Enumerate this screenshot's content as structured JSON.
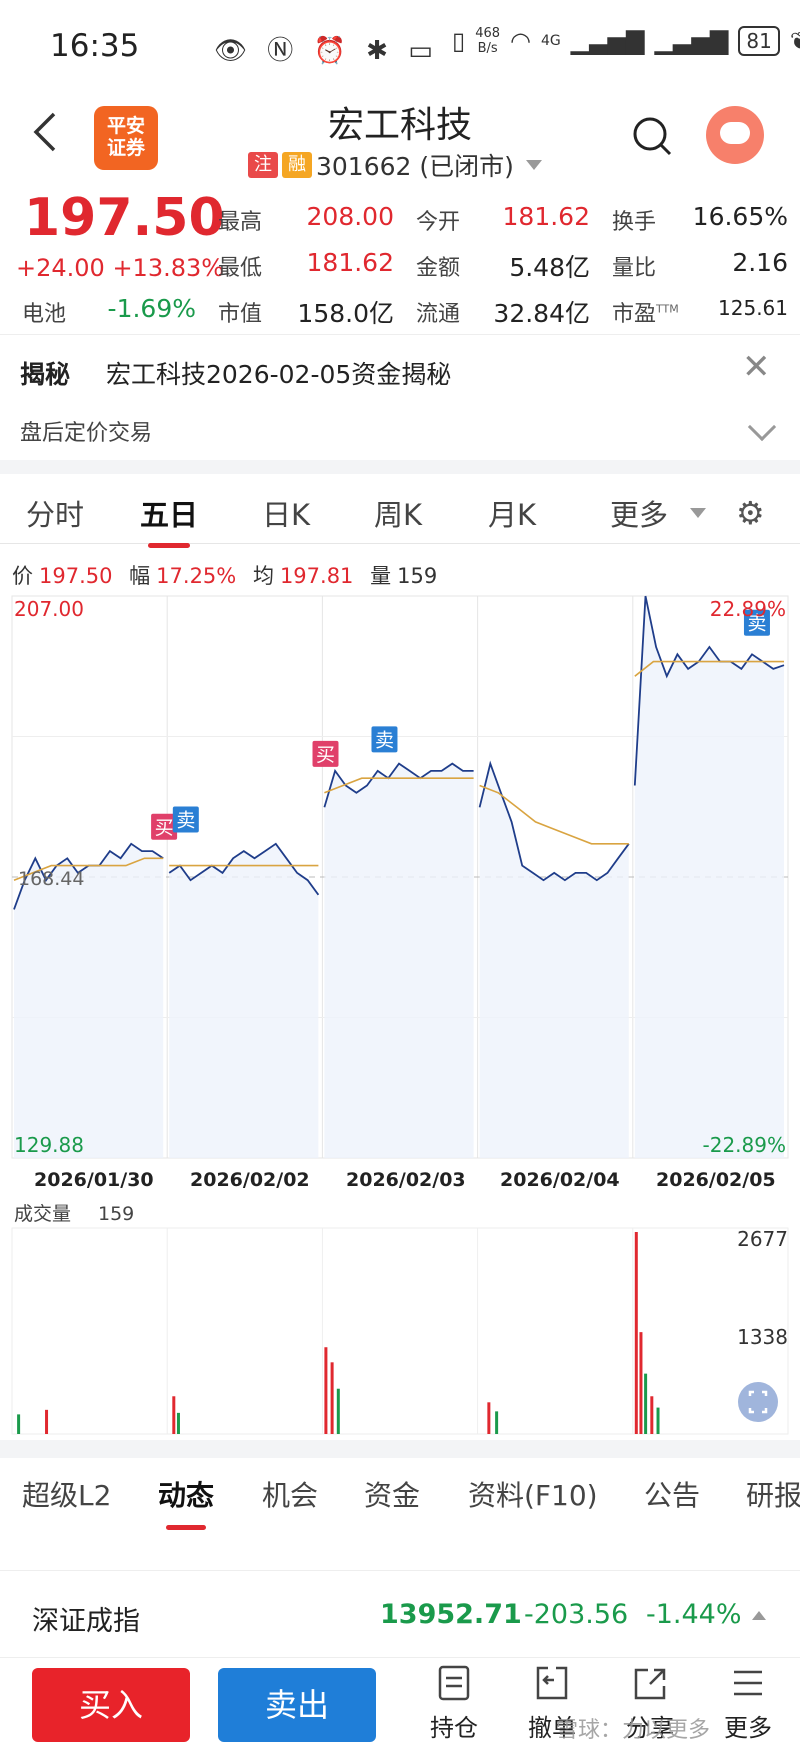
{
  "status_bar": {
    "time": "16:35",
    "left_icons": "👁 Ⓝ ⏰ ✱ ▭",
    "net_speed_top": "468",
    "net_speed_bottom": "B/s",
    "network": "4G",
    "battery": "81"
  },
  "header": {
    "broker_logo_line1": "平安",
    "broker_logo_line2": "证券",
    "stock_name": "宏工科技",
    "tag_zhu": "注",
    "tag_rong": "融",
    "code_status": "301662 (已闭市)"
  },
  "quote": {
    "price": "197.50",
    "change": "+24.00 +13.83%",
    "sector_label": "电池",
    "sector_change": "-1.69%",
    "rows": [
      {
        "l1": "最高",
        "v1": "208.00",
        "l2": "今开",
        "v2": "181.62",
        "l3": "换手",
        "v3": "16.65%"
      },
      {
        "l1": "最低",
        "v1": "181.62",
        "l2": "金额",
        "v2": "5.48亿",
        "l3": "量比",
        "v3": "2.16"
      },
      {
        "l1": "市值",
        "v1": "158.0亿",
        "l2": "流通",
        "v2": "32.84亿",
        "l3": "市盈",
        "v3": "125.61"
      }
    ],
    "ttm": "TTM"
  },
  "reveal": {
    "title": "揭秘",
    "text": "宏工科技2026-02-05资金揭秘",
    "close": "✕",
    "sub": "盘后定价交易"
  },
  "chart_tabs": [
    "分时",
    "五日",
    "日K",
    "周K",
    "月K",
    "更多"
  ],
  "chart_tabs_active": 1,
  "infoline": {
    "price_label": "价",
    "price": "197.50",
    "range_label": "幅",
    "range": "17.25%",
    "avg_label": "均",
    "avg": "197.81",
    "vol_label": "量",
    "vol": "159"
  },
  "chart_data": {
    "type": "line",
    "title": "",
    "dates": [
      "2026/01/30",
      "2026/02/02",
      "2026/02/03",
      "2026/02/04",
      "2026/02/05"
    ],
    "ylim": [
      129.88,
      207.0
    ],
    "y_top_label": "207.00",
    "y_bottom_label": "129.88",
    "pct_top_label": "22.89%",
    "pct_bottom_label": "-22.89%",
    "prev_close_label": "168.44",
    "prev_close": 168.44,
    "price_series": [
      {
        "day": 0,
        "values": [
          164,
          168,
          171,
          168,
          170,
          171,
          169,
          170,
          170,
          172,
          171,
          173,
          172,
          172,
          171
        ]
      },
      {
        "day": 1,
        "values": [
          169,
          170,
          168,
          169,
          170,
          169,
          171,
          172,
          171,
          172,
          173,
          171,
          169,
          168,
          166
        ]
      },
      {
        "day": 2,
        "values": [
          178,
          183,
          181,
          180,
          181,
          183,
          182,
          184,
          183,
          182,
          183,
          183,
          184,
          183,
          183
        ]
      },
      {
        "day": 3,
        "values": [
          178,
          184,
          180,
          176,
          170,
          169,
          168,
          169,
          168,
          169,
          169,
          168,
          169,
          171,
          173
        ]
      },
      {
        "day": 4,
        "values": [
          181,
          207,
          200,
          196,
          199,
          197,
          198,
          200,
          198,
          198,
          197,
          199,
          198,
          197,
          197.5
        ]
      }
    ],
    "avg_series": [
      {
        "day": 0,
        "values": [
          168,
          169,
          170,
          170,
          170,
          170,
          170,
          171,
          171
        ]
      },
      {
        "day": 1,
        "values": [
          170,
          170,
          170,
          170,
          170,
          170,
          170,
          170,
          170
        ]
      },
      {
        "day": 2,
        "values": [
          180,
          181,
          182,
          182,
          182,
          182,
          182,
          182,
          182
        ]
      },
      {
        "day": 3,
        "values": [
          181,
          180,
          178,
          176,
          175,
          174,
          173,
          173,
          173
        ]
      },
      {
        "day": 4,
        "values": [
          196,
          198,
          198,
          198,
          198,
          198,
          198,
          198,
          198
        ]
      }
    ],
    "trade_markers": [
      {
        "label": "买",
        "day": 0,
        "pos": 0.98,
        "price": 173,
        "color": "#e0406a"
      },
      {
        "label": "卖",
        "day": 1,
        "pos": 0.12,
        "price": 174,
        "color": "#2a7fd4"
      },
      {
        "label": "买",
        "day": 2,
        "pos": 0.02,
        "price": 183,
        "color": "#e0406a"
      },
      {
        "label": "卖",
        "day": 2,
        "pos": 0.4,
        "price": 185,
        "color": "#2a7fd4"
      },
      {
        "label": "卖",
        "day": 4,
        "pos": 0.8,
        "price": 201,
        "color": "#2a7fd4"
      }
    ],
    "volume_label": "成交量",
    "volume_value": "159",
    "volume_max_label": "2677",
    "volume_mid_label": "1338",
    "volume_max": 2677,
    "volume_spikes": [
      {
        "day": 0,
        "pos": 0.02,
        "value": 260,
        "up": false
      },
      {
        "day": 0,
        "pos": 0.2,
        "value": 320,
        "up": true
      },
      {
        "day": 1,
        "pos": 0.02,
        "value": 500,
        "up": true
      },
      {
        "day": 1,
        "pos": 0.05,
        "value": 280,
        "up": false
      },
      {
        "day": 2,
        "pos": 0.0,
        "value": 1150,
        "up": true
      },
      {
        "day": 2,
        "pos": 0.04,
        "value": 950,
        "up": true
      },
      {
        "day": 2,
        "pos": 0.08,
        "value": 600,
        "up": false
      },
      {
        "day": 3,
        "pos": 0.05,
        "value": 420,
        "up": true
      },
      {
        "day": 3,
        "pos": 0.1,
        "value": 300,
        "up": false
      },
      {
        "day": 4,
        "pos": 0.0,
        "value": 2677,
        "up": true
      },
      {
        "day": 4,
        "pos": 0.03,
        "value": 1350,
        "up": true
      },
      {
        "day": 4,
        "pos": 0.06,
        "value": 800,
        "up": false
      },
      {
        "day": 4,
        "pos": 0.1,
        "value": 500,
        "up": true
      },
      {
        "day": 4,
        "pos": 0.14,
        "value": 350,
        "up": false
      }
    ]
  },
  "bottom_tabs": [
    "超级L2",
    "动态",
    "机会",
    "资金",
    "资料(F10)",
    "公告",
    "研报"
  ],
  "bottom_tabs_active": 1,
  "index": {
    "name": "深证成指",
    "value": "13952.71",
    "change": "-203.56",
    "pct": "-1.44%"
  },
  "bottom_bar": {
    "buy": "买入",
    "sell": "卖出",
    "hold": "持仓",
    "cancel": "撤单",
    "share": "分享",
    "more": "更多"
  },
  "watermark": "雪球：力以更多",
  "colors": {
    "up": "#e0282f",
    "down": "#1a9a4b",
    "buy": "#e8232a",
    "sell": "#1f7ed8",
    "avg_line": "#d9a441",
    "price_line": "#1f3d8a"
  }
}
